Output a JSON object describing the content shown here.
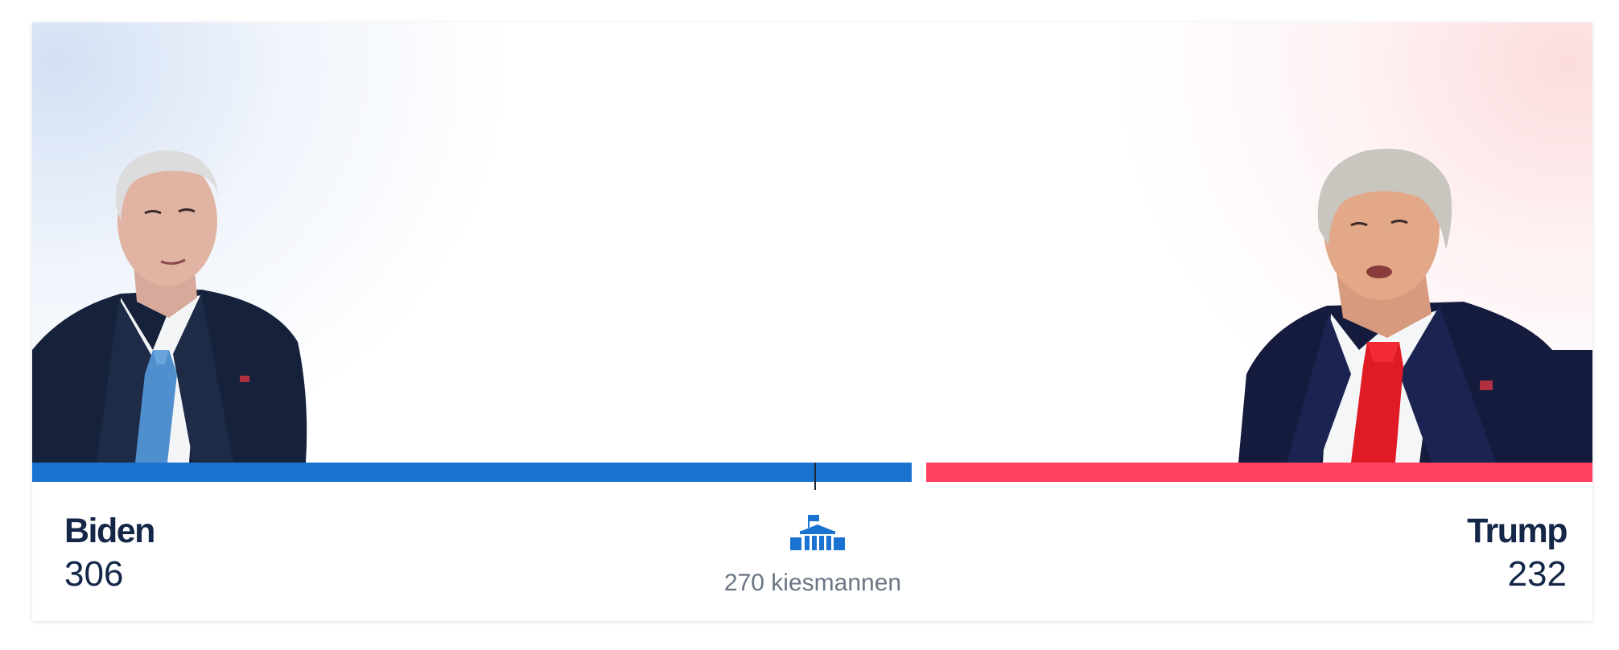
{
  "candidates": {
    "left": {
      "name": "Biden",
      "electoral_votes": "306",
      "color": "#1a73d0",
      "photo_icon": "biden-portrait",
      "vote_share": 306
    },
    "right": {
      "name": "Trump",
      "electoral_votes": "232",
      "color": "#ff4060",
      "photo_icon": "trump-portrait",
      "vote_share": 232
    }
  },
  "threshold": {
    "label": "270 kiesmannen",
    "icon": "capitol-building-icon",
    "value": 270,
    "total": 538
  }
}
